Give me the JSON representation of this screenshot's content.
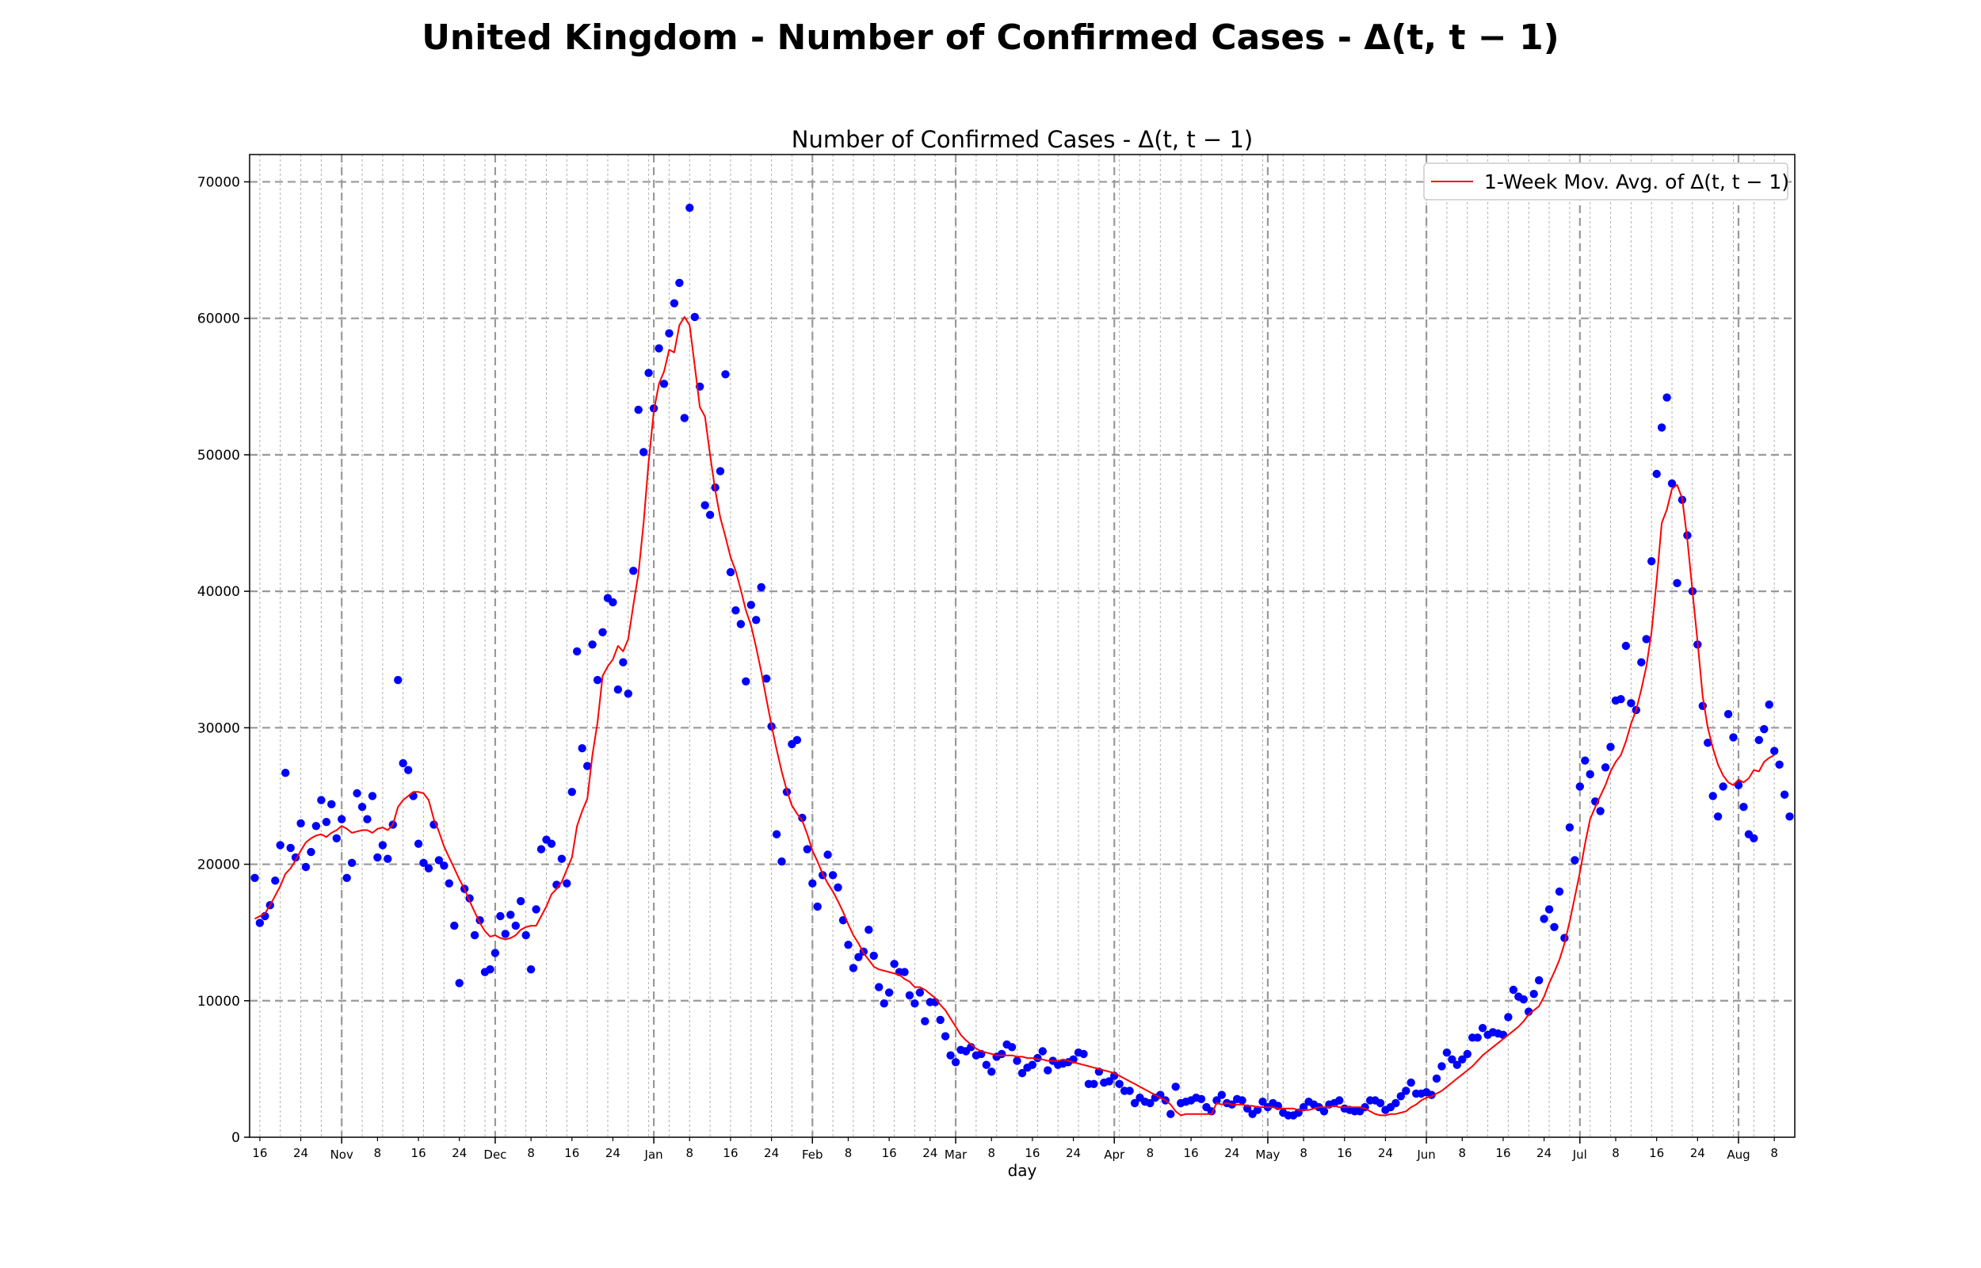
{
  "page": {
    "suptitle": "United Kingdom - Number of Confirmed Cases - Δ(t, t − 1)"
  },
  "chart_data": {
    "type": "scatter",
    "title": "Number of Confirmed Cases - Δ(t, t − 1)",
    "xlabel": "day",
    "ylabel": "",
    "x_start": "2020-10-14",
    "x_end": "2021-08-12",
    "ylim": [
      0,
      72000
    ],
    "yticks": [
      0,
      10000,
      20000,
      30000,
      40000,
      50000,
      60000,
      70000
    ],
    "month_ticks": [
      {
        "date": "2020-11-01",
        "label": "Nov"
      },
      {
        "date": "2020-12-01",
        "label": "Dec"
      },
      {
        "date": "2021-01-01",
        "label": "Jan"
      },
      {
        "date": "2021-02-01",
        "label": "Feb"
      },
      {
        "date": "2021-03-01",
        "label": "Mar"
      },
      {
        "date": "2021-04-01",
        "label": "Apr"
      },
      {
        "date": "2021-05-01",
        "label": "May"
      },
      {
        "date": "2021-06-01",
        "label": "Jun"
      },
      {
        "date": "2021-07-01",
        "label": "Jul"
      },
      {
        "date": "2021-08-01",
        "label": "Aug"
      }
    ],
    "day_ticks": [
      {
        "date": "2020-10-16",
        "label": "16"
      },
      {
        "date": "2020-10-24",
        "label": "24"
      },
      {
        "date": "2020-11-08",
        "label": "8"
      },
      {
        "date": "2020-11-16",
        "label": "16"
      },
      {
        "date": "2020-11-24",
        "label": "24"
      },
      {
        "date": "2020-12-08",
        "label": "8"
      },
      {
        "date": "2020-12-16",
        "label": "16"
      },
      {
        "date": "2020-12-24",
        "label": "24"
      },
      {
        "date": "2021-01-08",
        "label": "8"
      },
      {
        "date": "2021-01-16",
        "label": "16"
      },
      {
        "date": "2021-01-24",
        "label": "24"
      },
      {
        "date": "2021-02-08",
        "label": "8"
      },
      {
        "date": "2021-02-16",
        "label": "16"
      },
      {
        "date": "2021-02-24",
        "label": "24"
      },
      {
        "date": "2021-03-08",
        "label": "8"
      },
      {
        "date": "2021-03-16",
        "label": "16"
      },
      {
        "date": "2021-03-24",
        "label": "24"
      },
      {
        "date": "2021-04-08",
        "label": "8"
      },
      {
        "date": "2021-04-16",
        "label": "16"
      },
      {
        "date": "2021-04-24",
        "label": "24"
      },
      {
        "date": "2021-05-08",
        "label": "8"
      },
      {
        "date": "2021-05-16",
        "label": "16"
      },
      {
        "date": "2021-05-24",
        "label": "24"
      },
      {
        "date": "2021-06-08",
        "label": "8"
      },
      {
        "date": "2021-06-16",
        "label": "16"
      },
      {
        "date": "2021-06-24",
        "label": "24"
      },
      {
        "date": "2021-07-08",
        "label": "8"
      },
      {
        "date": "2021-07-16",
        "label": "16"
      },
      {
        "date": "2021-07-24",
        "label": "24"
      },
      {
        "date": "2021-08-08",
        "label": "8"
      }
    ],
    "grid": true,
    "legend": {
      "entries": [
        "1-Week Mov. Avg. of Δ(t, t − 1)"
      ],
      "placement": "top-right"
    },
    "colors": {
      "points": "#0000ff",
      "moving_average": "#ff0000",
      "grid": "#b0b0b0"
    },
    "series": [
      {
        "kind": "scatter",
        "start_date": "2020-10-15",
        "values": [
          19000,
          15700,
          16200,
          17000,
          18800,
          21400,
          26700,
          21200,
          20500,
          23000,
          19800,
          20900,
          22800,
          24700,
          23100,
          24400,
          21900,
          23300,
          19000,
          20100,
          25200,
          24200,
          23300,
          25000,
          20500,
          21400,
          20400,
          22900,
          33500,
          27400,
          26900,
          25000,
          21500,
          20100,
          19700,
          22900,
          20300,
          19900,
          18600,
          15500,
          11300,
          18200,
          17500,
          14800,
          15900,
          12100,
          12300,
          13500,
          16200,
          14900,
          16300,
          15500,
          17300,
          14800,
          12300,
          16700,
          21100,
          21800,
          21500,
          18500,
          20400,
          18600,
          25300,
          35600,
          28500,
          27200,
          36100,
          33500,
          37000,
          39500,
          39200,
          32800,
          34800,
          32500,
          41500,
          53300,
          50200,
          56000,
          53400,
          57800,
          55200,
          58900,
          61100,
          62600,
          52700,
          68100,
          60100,
          55000,
          46300,
          45600,
          47600,
          48800,
          55900,
          41400,
          38600,
          37600,
          33400,
          39000,
          37900,
          40300,
          33600,
          30100,
          22200,
          20200,
          25300,
          28800,
          29100,
          23400,
          21100,
          18600,
          16900,
          19200,
          20700,
          19200,
          18300,
          15900,
          14100,
          12400,
          13200,
          13600,
          15200,
          13300,
          11000,
          9800,
          10600,
          12700,
          12100,
          12100,
          10400,
          9800,
          10600,
          8500,
          9900,
          9900,
          8600,
          7400,
          6000,
          5500,
          6400,
          6300,
          6600,
          6000,
          6100,
          5300,
          4800,
          5900,
          6100,
          6800,
          6600,
          5600,
          4700,
          5100,
          5300,
          5800,
          6300,
          4900,
          5600,
          5300,
          5400,
          5500,
          5700,
          6200,
          6100,
          3900,
          3900,
          4800,
          4000,
          4100,
          4500,
          3900,
          3400,
          3400,
          2500,
          2900,
          2600,
          2500,
          2900,
          3100,
          2700,
          1700,
          3700,
          2500,
          2600,
          2700,
          2900,
          2800,
          2200,
          1900,
          2700,
          3100,
          2500,
          2400,
          2800,
          2700,
          2100,
          1700,
          2000,
          2600,
          2200,
          2500,
          2300,
          1800,
          1600,
          1600,
          1800,
          2200,
          2600,
          2400,
          2200,
          1900,
          2400,
          2500,
          2700,
          2100,
          2000,
          1900,
          1900,
          2200,
          2700,
          2700,
          2500,
          2000,
          2200,
          2500,
          3000,
          3400,
          4000,
          3200,
          3200,
          3300,
          3100,
          4300,
          5200,
          6200,
          5700,
          5300,
          5700,
          6100,
          7300,
          7300,
          8000,
          7500,
          7700,
          7600,
          7500,
          8800,
          10800,
          10300,
          10100,
          9200,
          10500,
          11500,
          16000,
          16700,
          15400,
          18000,
          14600,
          22700,
          20300,
          25700,
          27600,
          26600,
          24600,
          23900,
          27100,
          28600,
          32000,
          32100,
          36000,
          31800,
          31300,
          34800,
          36500,
          42200,
          48600,
          52000,
          54200,
          47900,
          40600,
          46700,
          44100,
          40000,
          36100,
          31600,
          28900,
          25000,
          23500,
          25700,
          31000,
          29300,
          25800,
          24200,
          22200,
          21900,
          29100,
          29900,
          31700,
          28300,
          27300,
          25100,
          23500
        ]
      },
      {
        "kind": "line",
        "name": "1-Week Mov. Avg. of Δ(t, t − 1)",
        "start_date": "2020-10-15",
        "values": [
          16000,
          16200,
          16400,
          17000,
          17700,
          18400,
          19300,
          19700,
          20300,
          21000,
          21600,
          21900,
          22100,
          22200,
          22000,
          22300,
          22500,
          22800,
          22600,
          22300,
          22400,
          22500,
          22500,
          22300,
          22600,
          22700,
          22500,
          22900,
          24200,
          24700,
          25000,
          25300,
          25300,
          25200,
          24700,
          23300,
          22400,
          21300,
          20500,
          19700,
          18900,
          18200,
          17300,
          16500,
          15700,
          15100,
          14700,
          14800,
          14600,
          14500,
          14600,
          14800,
          15200,
          15400,
          15500,
          15500,
          16200,
          16900,
          17800,
          18200,
          18700,
          19600,
          20500,
          22800,
          23900,
          24800,
          28000,
          30400,
          33800,
          34500,
          35000,
          36000,
          35600,
          36500,
          39000,
          41300,
          45000,
          49500,
          53200,
          55200,
          56100,
          57700,
          57500,
          59500,
          60100,
          59500,
          56500,
          53500,
          52800,
          50000,
          47400,
          45400,
          44000,
          42500,
          41500,
          40100,
          38600,
          37500,
          35900,
          34100,
          32100,
          30200,
          28400,
          26800,
          25400,
          24300,
          23700,
          23200,
          22200,
          21000,
          20200,
          19300,
          18600,
          18000,
          17300,
          16500,
          15600,
          14800,
          14200,
          13500,
          13000,
          12500,
          12300,
          12200,
          12100,
          12000,
          11900,
          11600,
          11400,
          11000,
          11000,
          10800,
          10500,
          10200,
          9700,
          9300,
          8700,
          8100,
          7500,
          7100,
          6800,
          6500,
          6300,
          6200,
          6100,
          6000,
          6000,
          6000,
          6000,
          5900,
          5900,
          5800,
          5800,
          5700,
          5700,
          5600,
          5600,
          5600,
          5700,
          5600,
          5500,
          5400,
          5300,
          5200,
          5100,
          5000,
          4900,
          4800,
          4700,
          4500,
          4300,
          4100,
          3900,
          3700,
          3500,
          3300,
          3100,
          2900,
          2700,
          2400,
          1900,
          1600,
          1700,
          1700,
          1700,
          1700,
          1700,
          1700,
          2500,
          2400,
          2500,
          2400,
          2400,
          2400,
          2300,
          2300,
          2200,
          2200,
          2200,
          2200,
          2100,
          2100,
          2100,
          2100,
          2000,
          2000,
          2000,
          2100,
          2200,
          2200,
          2200,
          2300,
          2200,
          2200,
          2200,
          2200,
          2200,
          2100,
          1900,
          1700,
          1600,
          1600,
          1700,
          1700,
          1800,
          1900,
          2200,
          2400,
          2700,
          2900,
          3000,
          3200,
          3400,
          3700,
          4000,
          4300,
          4600,
          4900,
          5200,
          5600,
          6000,
          6300,
          6600,
          6900,
          7200,
          7500,
          7800,
          8100,
          8500,
          9000,
          9300,
          9600,
          10300,
          11300,
          12100,
          13000,
          14200,
          15800,
          17600,
          19400,
          21500,
          23300,
          24200,
          25000,
          25800,
          26800,
          27500,
          28000,
          29000,
          30300,
          31300,
          32800,
          34500,
          37000,
          40800,
          45000,
          46000,
          47500,
          47800,
          46800,
          43800,
          40000,
          36300,
          32300,
          30000,
          28500,
          27300,
          26500,
          26000,
          25800,
          26200,
          26000,
          26300,
          26900,
          26800,
          27500,
          27800,
          28000
        ]
      }
    ]
  }
}
